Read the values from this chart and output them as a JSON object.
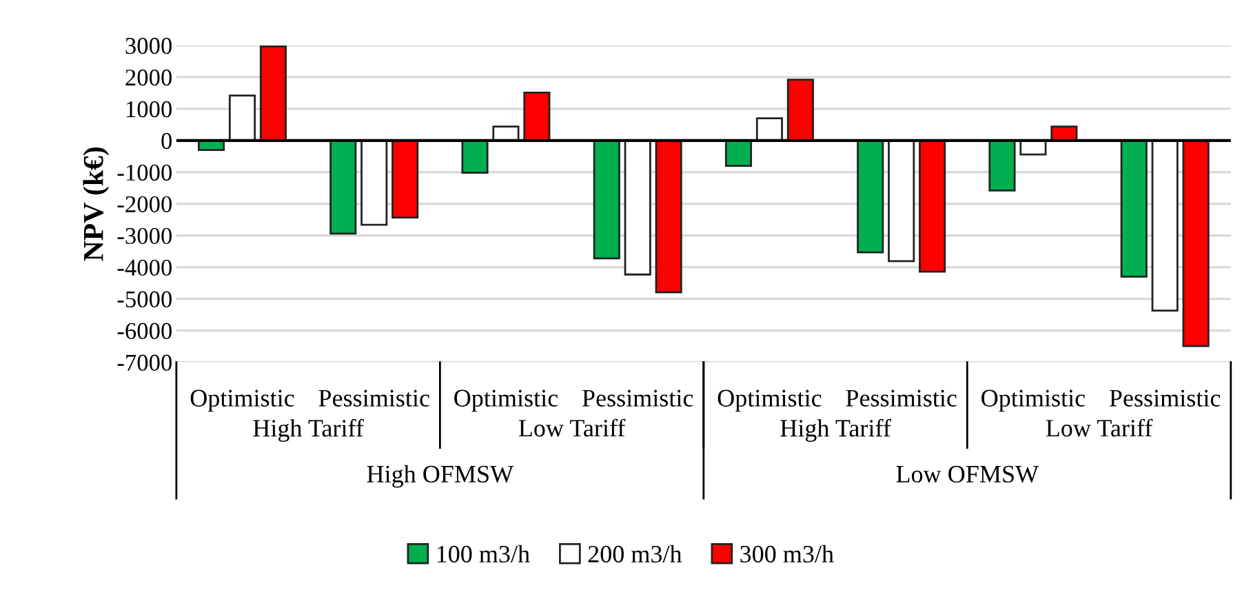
{
  "chart_data": {
    "type": "bar",
    "ylabel": "NPV (k€)",
    "categories": [
      "Optimistic",
      "Pessimistic",
      "Optimistic",
      "Pessimistic",
      "Optimistic",
      "Pessimistic",
      "Optimistic",
      "Pessimistic"
    ],
    "series": [
      {
        "name": "100 m3/h",
        "color": "#00b050",
        "values": [
          -300,
          -2940,
          -1020,
          -3720,
          -800,
          -3530,
          -1580,
          -4300
        ]
      },
      {
        "name": "200 m3/h",
        "color": "#ffffff",
        "values": [
          1420,
          -2660,
          440,
          -4230,
          700,
          -3810,
          -440,
          -5370
        ]
      },
      {
        "name": "300 m3/h",
        "color": "#ff0000",
        "values": [
          2970,
          -2430,
          1510,
          -4790,
          1920,
          -4140,
          440,
          -6490
        ]
      }
    ],
    "annotations": [
      "High Tariff",
      "Low Tariff",
      "High Tariff",
      "Low Tariff",
      "High OFMSW",
      "Low OFMSW"
    ],
    "ylim": [
      -7000,
      3000
    ],
    "yticks": [
      -7000,
      -6000,
      -5000,
      -4000,
      -3000,
      -2000,
      -1000,
      0,
      1000,
      2000,
      3000
    ],
    "grid": "y",
    "legend": "bottom"
  }
}
